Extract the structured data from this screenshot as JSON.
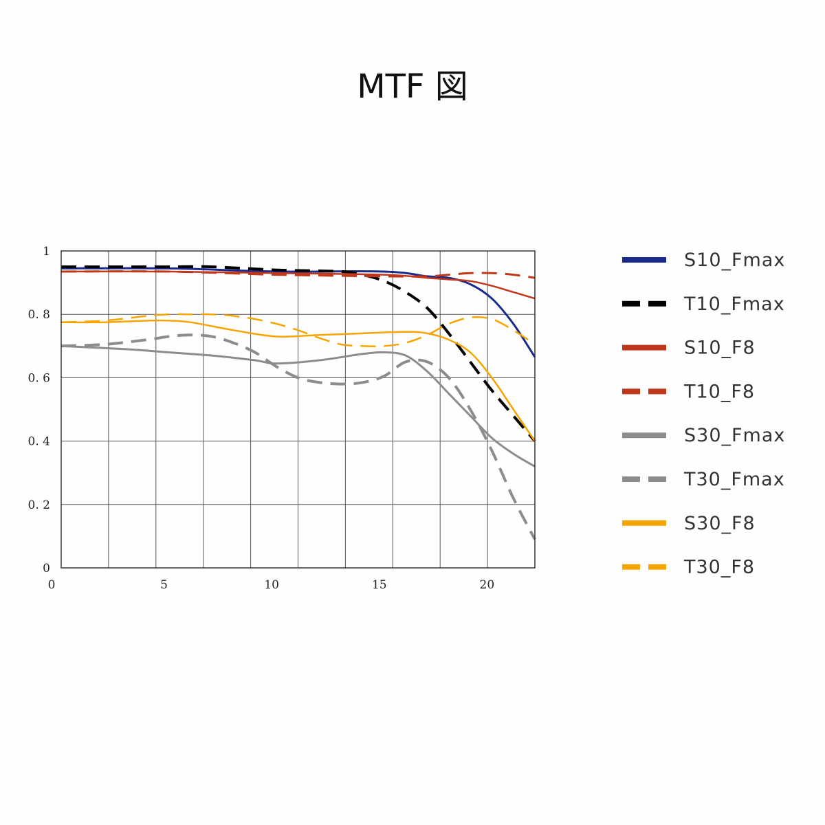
{
  "title": "MTF 図",
  "chart_data": {
    "type": "line",
    "xlim": [
      0,
      22
    ],
    "ylim": [
      0,
      1
    ],
    "x_ticks": [
      {
        "value": 0,
        "label": "0"
      },
      {
        "value": 5,
        "label": "5"
      },
      {
        "value": 10,
        "label": "10"
      },
      {
        "value": 15,
        "label": "15"
      },
      {
        "value": 20,
        "label": "20"
      }
    ],
    "y_ticks": [
      {
        "value": 0,
        "label": "0"
      },
      {
        "value": 0.2,
        "label": "0. 2"
      },
      {
        "value": 0.4,
        "label": "0. 4"
      },
      {
        "value": 0.6,
        "label": "0. 6"
      },
      {
        "value": 0.8,
        "label": "0. 8"
      },
      {
        "value": 1,
        "label": "1"
      }
    ],
    "grid": true,
    "legend_position": "right",
    "series": [
      {
        "name": "S10_Fmax",
        "color": "#1a2a8c",
        "style": "solid",
        "x": [
          0,
          5,
          10,
          15,
          17,
          18,
          19,
          20,
          21,
          22
        ],
        "y": [
          0.945,
          0.945,
          0.935,
          0.935,
          0.92,
          0.915,
          0.895,
          0.85,
          0.77,
          0.665
        ]
      },
      {
        "name": "T10_Fmax",
        "color": "#000000",
        "style": "dashed",
        "x": [
          0,
          3,
          5,
          7,
          10,
          13,
          14,
          15,
          16,
          17,
          18,
          19,
          20,
          21,
          22
        ],
        "y": [
          0.95,
          0.95,
          0.95,
          0.95,
          0.94,
          0.935,
          0.925,
          0.905,
          0.87,
          0.82,
          0.74,
          0.65,
          0.56,
          0.48,
          0.4
        ]
      },
      {
        "name": "S10_F8",
        "color": "#c0361a",
        "style": "solid",
        "x": [
          0,
          5,
          10,
          15,
          17,
          18,
          19,
          20,
          21,
          22
        ],
        "y": [
          0.935,
          0.935,
          0.93,
          0.925,
          0.915,
          0.91,
          0.905,
          0.89,
          0.87,
          0.85
        ]
      },
      {
        "name": "T10_F8",
        "color": "#c0361a",
        "style": "dashed",
        "x": [
          0,
          5,
          10,
          15,
          17,
          18,
          19,
          20,
          21,
          22
        ],
        "y": [
          0.935,
          0.935,
          0.925,
          0.92,
          0.92,
          0.925,
          0.93,
          0.93,
          0.925,
          0.915
        ]
      },
      {
        "name": "S30_Fmax",
        "color": "#8c8c8c",
        "style": "solid",
        "x": [
          0,
          3,
          5,
          7,
          9,
          10,
          12,
          14,
          15,
          16,
          17,
          18,
          19,
          20,
          21,
          22
        ],
        "y": [
          0.7,
          0.69,
          0.68,
          0.67,
          0.655,
          0.645,
          0.655,
          0.675,
          0.68,
          0.67,
          0.62,
          0.55,
          0.48,
          0.41,
          0.36,
          0.32
        ]
      },
      {
        "name": "T30_Fmax",
        "color": "#8c8c8c",
        "style": "dashed",
        "x": [
          0,
          2,
          4,
          5,
          6,
          7,
          8,
          9,
          10,
          11,
          12,
          13,
          14,
          15,
          16,
          17,
          18,
          19,
          20,
          21,
          22
        ],
        "y": [
          0.7,
          0.705,
          0.72,
          0.73,
          0.735,
          0.73,
          0.71,
          0.68,
          0.635,
          0.6,
          0.585,
          0.58,
          0.585,
          0.605,
          0.65,
          0.65,
          0.6,
          0.5,
          0.37,
          0.22,
          0.09
        ]
      },
      {
        "name": "S30_F8",
        "color": "#f5a400",
        "style": "solid",
        "x": [
          0,
          2,
          4,
          5,
          6,
          8,
          10,
          12,
          14,
          16,
          17,
          18,
          19,
          20,
          21,
          22
        ],
        "y": [
          0.775,
          0.775,
          0.78,
          0.78,
          0.775,
          0.75,
          0.73,
          0.735,
          0.74,
          0.745,
          0.74,
          0.72,
          0.68,
          0.6,
          0.5,
          0.4
        ]
      },
      {
        "name": "T30_F8",
        "color": "#f5a400",
        "style": "dashed",
        "x": [
          0,
          2,
          4,
          5,
          6,
          7,
          8,
          9,
          10,
          11,
          12,
          13,
          14,
          15,
          16,
          17,
          18,
          19,
          20,
          21,
          22
        ],
        "y": [
          0.775,
          0.78,
          0.795,
          0.8,
          0.8,
          0.8,
          0.795,
          0.785,
          0.77,
          0.75,
          0.725,
          0.705,
          0.7,
          0.7,
          0.71,
          0.735,
          0.77,
          0.79,
          0.785,
          0.75,
          0.705
        ]
      }
    ]
  }
}
